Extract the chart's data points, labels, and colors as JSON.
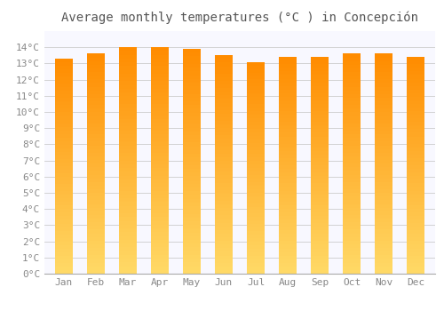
{
  "title": "Average monthly temperatures (°C ) in Concepción",
  "months": [
    "Jan",
    "Feb",
    "Mar",
    "Apr",
    "May",
    "Jun",
    "Jul",
    "Aug",
    "Sep",
    "Oct",
    "Nov",
    "Dec"
  ],
  "values": [
    13.3,
    13.6,
    14.0,
    14.0,
    13.9,
    13.5,
    13.1,
    13.4,
    13.4,
    13.6,
    13.6,
    13.4
  ],
  "ylim": [
    0,
    15
  ],
  "yticks": [
    0,
    1,
    2,
    3,
    4,
    5,
    6,
    7,
    8,
    9,
    10,
    11,
    12,
    13,
    14
  ],
  "bar_color_center": "#FFB833",
  "bar_color_edge": "#FF8C00",
  "bar_color_light": "#FFD966",
  "background_color": "#FFFFFF",
  "plot_bg_color": "#F8F8FF",
  "grid_color": "#CCCCCC",
  "title_fontsize": 10,
  "tick_fontsize": 8,
  "bar_width": 0.55,
  "tick_color": "#888888"
}
